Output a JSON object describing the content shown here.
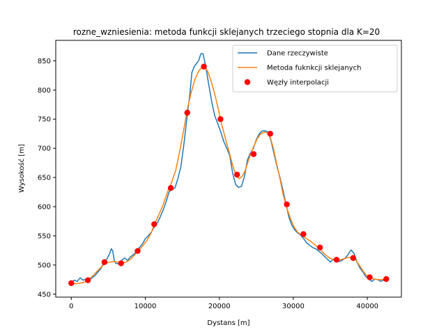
{
  "chart_data": {
    "type": "line",
    "title": "rozne_wzniesienia: metoda funkcji sklejanych trzeciego stopnia dla K=20",
    "xlabel": "Dystans [m]",
    "ylabel": "Wysokość [m]",
    "xlim": [
      -2100,
      44600
    ],
    "ylim": [
      445,
      885
    ],
    "xticks": [
      0,
      10000,
      20000,
      30000,
      40000
    ],
    "xtick_labels": [
      "0",
      "10000",
      "20000",
      "30000",
      "40000"
    ],
    "yticks": [
      450,
      500,
      550,
      600,
      650,
      700,
      750,
      800,
      850
    ],
    "ytick_labels": [
      "450",
      "500",
      "550",
      "600",
      "650",
      "700",
      "750",
      "800",
      "850"
    ],
    "grid": false,
    "legend_position": "top-right",
    "series": [
      {
        "name": "Dane rzeczywiste",
        "kind": "line",
        "color": "#1f77b4",
        "x": [
          0,
          400,
          800,
          1200,
          1600,
          2000,
          2400,
          2800,
          3200,
          3600,
          4000,
          4400,
          4800,
          5200,
          5400,
          5600,
          5800,
          6000,
          6400,
          6800,
          7200,
          7600,
          8000,
          8400,
          8800,
          9200,
          9600,
          10000,
          10400,
          10800,
          11200,
          11600,
          12000,
          12400,
          12800,
          13200,
          13600,
          14000,
          14400,
          14800,
          15200,
          15600,
          16000,
          16300,
          16600,
          16900,
          17200,
          17500,
          17800,
          18000,
          18200,
          18400,
          18700,
          19000,
          19400,
          19800,
          20200,
          20600,
          21000,
          21400,
          21800,
          22200,
          22600,
          23000,
          23400,
          23800,
          24200,
          24600,
          25000,
          25400,
          25800,
          26200,
          26600,
          27000,
          27400,
          27800,
          28200,
          28600,
          29000,
          29400,
          29800,
          30200,
          30600,
          31000,
          31400,
          31800,
          32200,
          32600,
          33000,
          33400,
          33800,
          34200,
          34600,
          35000,
          35400,
          35800,
          36200,
          36600,
          37000,
          37400,
          37800,
          38200,
          38600,
          39000,
          39400,
          39800,
          40200,
          40600,
          41000,
          41400,
          41800,
          42200,
          42500
        ],
        "y": [
          470,
          474,
          472,
          478,
          474,
          476,
          474,
          478,
          482,
          488,
          494,
          505,
          510,
          520,
          528,
          524,
          508,
          503,
          502,
          508,
          512,
          508,
          514,
          518,
          522,
          530,
          536,
          545,
          550,
          556,
          565,
          572,
          582,
          594,
          608,
          625,
          630,
          632,
          648,
          668,
          705,
          750,
          790,
          830,
          840,
          845,
          850,
          862,
          862,
          850,
          838,
          822,
          800,
          778,
          755,
          742,
          728,
          712,
          700,
          688,
          658,
          638,
          633,
          635,
          652,
          680,
          692,
          700,
          715,
          725,
          730,
          730,
          728,
          712,
          690,
          668,
          650,
          628,
          605,
          582,
          568,
          560,
          555,
          551,
          545,
          538,
          534,
          530,
          528,
          524,
          520,
          515,
          510,
          505,
          510,
          508,
          506,
          508,
          512,
          518,
          526,
          520,
          505,
          495,
          488,
          480,
          476,
          472,
          476,
          475,
          472,
          474,
          476
        ]
      },
      {
        "name": "Metoda fuknkcji sklejanych",
        "kind": "line",
        "color": "#ff7f0e",
        "x": [
          0,
          600,
          1200,
          1700,
          2200,
          2800,
          3400,
          4000,
          4600,
          5200,
          5800,
          6300,
          6800,
          7400,
          8000,
          8600,
          9000,
          9600,
          10200,
          10800,
          11200,
          11800,
          12400,
          13000,
          13500,
          14100,
          14700,
          15200,
          15700,
          16200,
          16700,
          17200,
          17600,
          18000,
          18400,
          18900,
          19400,
          19900,
          20300,
          20800,
          21300,
          21800,
          22300,
          22700,
          23100,
          23500,
          24000,
          24600,
          25100,
          25600,
          26100,
          26500,
          26900,
          27300,
          27700,
          28200,
          28600,
          29100,
          29600,
          30100,
          30600,
          31200,
          31800,
          32400,
          33000,
          33600,
          34200,
          34800,
          35400,
          35900,
          36400,
          36900,
          37400,
          37900,
          38400,
          38900,
          39400,
          39900,
          40400,
          40900,
          41400,
          41900,
          42500
        ],
        "y": [
          469,
          468,
          469,
          470,
          473,
          480,
          488,
          496,
          503,
          505,
          506,
          505,
          503,
          505,
          510,
          518,
          524,
          532,
          542,
          555,
          569,
          585,
          603,
          625,
          640,
          662,
          698,
          732,
          768,
          796,
          818,
          832,
          838,
          838,
          833,
          815,
          792,
          765,
          742,
          718,
          695,
          671,
          652,
          648,
          652,
          662,
          682,
          702,
          716,
          725,
          728,
          726,
          718,
          700,
          676,
          648,
          622,
          598,
          580,
          565,
          556,
          550,
          545,
          540,
          534,
          527,
          519,
          513,
          509,
          508,
          509,
          511,
          513,
          513,
          509,
          500,
          490,
          482,
          478,
          476,
          475,
          475,
          476
        ]
      },
      {
        "name": "Węzły interpolacji",
        "kind": "scatter",
        "color": "#ff0000",
        "x": [
          0,
          2240,
          4480,
          6720,
          8960,
          11200,
          13440,
          15680,
          17920,
          20160,
          22400,
          24640,
          26880,
          29120,
          31360,
          33600,
          35840,
          38080,
          40320,
          42560
        ],
        "y": [
          469,
          474,
          505,
          503,
          524,
          570,
          632,
          761,
          840,
          750,
          655,
          690,
          725,
          604,
          553,
          530,
          509,
          512,
          479,
          476
        ]
      }
    ]
  }
}
